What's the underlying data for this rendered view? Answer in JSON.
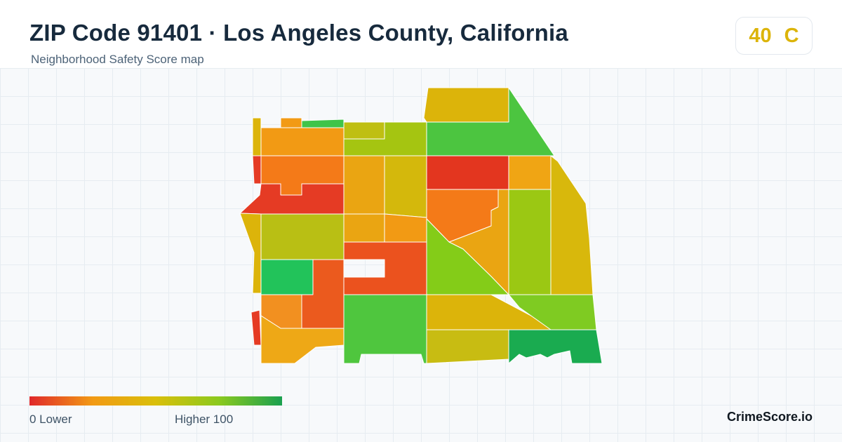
{
  "header": {
    "title": "ZIP Code 91401 · Los Angeles County, California",
    "subtitle": "Neighborhood Safety Score map"
  },
  "score": {
    "value": "40",
    "grade": "C",
    "color": "#dcb40a"
  },
  "legend": {
    "min_label": "0  Lower",
    "max_label": "Higher  100",
    "colors": [
      "#e0282a",
      "#f29a14",
      "#d9bf0a",
      "#8bc91e",
      "#1aa04f"
    ]
  },
  "brand": "CrimeScore.io",
  "map": {
    "regions": [
      {
        "id": "nw-strip",
        "color": "#dcb40a"
      },
      {
        "id": "north-top-left",
        "color": "#f29a14"
      },
      {
        "id": "north-green-strip",
        "color": "#3fc449"
      },
      {
        "id": "north-row",
        "color": "#f29a14"
      },
      {
        "id": "west-red-edge",
        "color": "#e53b24"
      },
      {
        "id": "west-block",
        "color": "#f47a18"
      },
      {
        "id": "west-wedge",
        "color": "#e53b24"
      },
      {
        "id": "north-center-a",
        "color": "#bfbf12"
      },
      {
        "id": "north-center-b",
        "color": "#a5c511"
      },
      {
        "id": "north-tall",
        "color": "#dcb40a"
      },
      {
        "id": "northeast-green",
        "color": "#4cc540"
      },
      {
        "id": "center-a",
        "color": "#eaa512"
      },
      {
        "id": "center-b",
        "color": "#d4b80c"
      },
      {
        "id": "center-red",
        "color": "#e3361f"
      },
      {
        "id": "east-small",
        "color": "#f0a514"
      },
      {
        "id": "east-long",
        "color": "#d8b80c"
      },
      {
        "id": "center-orange",
        "color": "#f47a18"
      },
      {
        "id": "diagonal-orange",
        "color": "#eaa512"
      },
      {
        "id": "east-green-col",
        "color": "#9bc813"
      },
      {
        "id": "west-mid",
        "color": "#b9bf14"
      },
      {
        "id": "center-small-a",
        "color": "#eaa512"
      },
      {
        "id": "center-small-b",
        "color": "#f29a14"
      },
      {
        "id": "triangle-green",
        "color": "#84cc18"
      },
      {
        "id": "west-left-strip",
        "color": "#dcb40a"
      },
      {
        "id": "green-square",
        "color": "#22c35a"
      },
      {
        "id": "center-red-l",
        "color": "#eb521e"
      },
      {
        "id": "west-orange",
        "color": "#eb5a1e"
      },
      {
        "id": "southwest-a",
        "color": "#f29020"
      },
      {
        "id": "southwest-red-strip",
        "color": "#e53b24"
      },
      {
        "id": "southwest-b",
        "color": "#eea816"
      },
      {
        "id": "south-green",
        "color": "#4fc63e"
      },
      {
        "id": "south-diagonal",
        "color": "#dcb40a"
      },
      {
        "id": "southeast-green",
        "color": "#7fcb22"
      },
      {
        "id": "south-bottom",
        "color": "#c8bc12"
      },
      {
        "id": "southeast-dark",
        "color": "#1aab50"
      }
    ]
  }
}
